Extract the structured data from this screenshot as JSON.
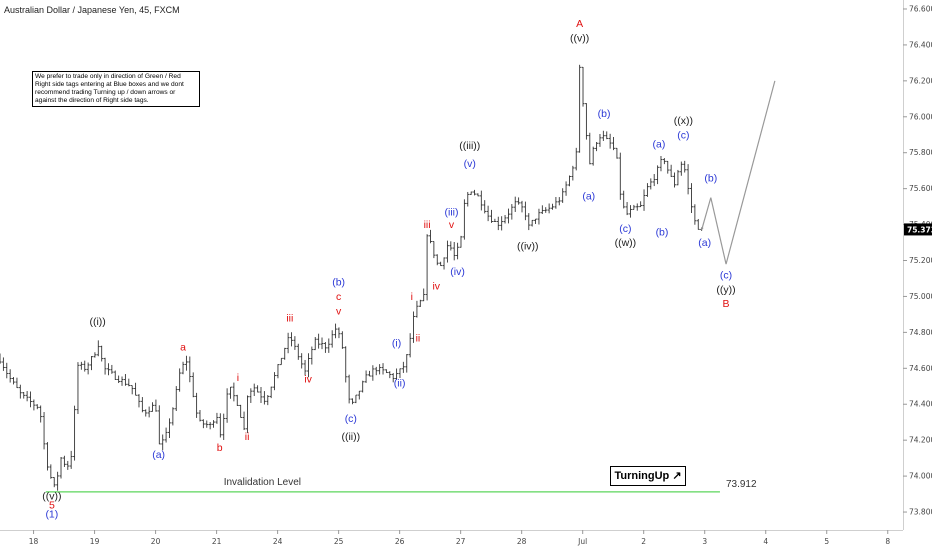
{
  "title": "Australian Dollar / Japanese Yen, 45, FXCM",
  "note": "We prefer to trade only in direction of Green / Red Right side tags entering at Blue boxes and we dont recommend trading Turning up / down arrows or against the direction of Right side tags.",
  "badge": {
    "label": "TurningUp",
    "icon": "up-arrow-icon"
  },
  "colors": {
    "black": "#222222",
    "blue": "#2d3ad6",
    "red": "#e01010",
    "green": "#5cd65c",
    "projection": "#999999",
    "price_tag": "#000000"
  },
  "chart_data": {
    "type": "ohlc",
    "x_unit": "days",
    "x_ticks": [
      {
        "x": 0,
        "label": "18"
      },
      {
        "x": 1,
        "label": "19"
      },
      {
        "x": 2,
        "label": "20"
      },
      {
        "x": 3,
        "label": "21"
      },
      {
        "x": 4,
        "label": "24"
      },
      {
        "x": 5,
        "label": "25"
      },
      {
        "x": 6,
        "label": "26"
      },
      {
        "x": 7,
        "label": "27"
      },
      {
        "x": 8,
        "label": "28"
      },
      {
        "x": 9,
        "label": "Jul"
      },
      {
        "x": 10,
        "label": "2"
      },
      {
        "x": 11,
        "label": "3"
      },
      {
        "x": 12,
        "label": "4"
      },
      {
        "x": 13,
        "label": "5"
      },
      {
        "x": 14,
        "label": "8"
      }
    ],
    "y_ticks": [
      "73.800",
      "74.000",
      "74.200",
      "74.400",
      "74.600",
      "74.800",
      "75.000",
      "75.200",
      "75.400",
      "75.600",
      "75.800",
      "76.000",
      "76.200",
      "76.400",
      "76.600"
    ],
    "ylim": [
      73.7,
      76.65
    ],
    "xlim": [
      -0.55,
      14.25
    ],
    "current_price": "75.373",
    "invalidation": {
      "label": "Invalidation Level",
      "value": 73.912,
      "value_label": "73.912",
      "x_start": 0.2,
      "x_end": 11.25
    },
    "price_path": [
      [
        -0.55,
        74.65
      ],
      [
        -0.4,
        74.55
      ],
      [
        -0.2,
        74.45
      ],
      [
        0.0,
        74.4
      ],
      [
        0.1,
        74.38
      ],
      [
        0.2,
        74.1
      ],
      [
        0.3,
        73.97
      ],
      [
        0.35,
        73.93
      ],
      [
        0.45,
        74.1
      ],
      [
        0.55,
        74.05
      ],
      [
        0.65,
        74.15
      ],
      [
        0.7,
        74.62
      ],
      [
        0.85,
        74.6
      ],
      [
        1.0,
        74.68
      ],
      [
        1.05,
        74.75
      ],
      [
        1.15,
        74.6
      ],
      [
        1.35,
        74.55
      ],
      [
        1.6,
        74.5
      ],
      [
        1.8,
        74.35
      ],
      [
        2.0,
        74.4
      ],
      [
        2.05,
        74.17
      ],
      [
        2.15,
        74.2
      ],
      [
        2.3,
        74.4
      ],
      [
        2.4,
        74.58
      ],
      [
        2.5,
        74.65
      ],
      [
        2.58,
        74.52
      ],
      [
        2.7,
        74.3
      ],
      [
        2.9,
        74.28
      ],
      [
        3.0,
        74.35
      ],
      [
        3.05,
        74.22
      ],
      [
        3.1,
        74.3
      ],
      [
        3.2,
        74.5
      ],
      [
        3.35,
        74.4
      ],
      [
        3.45,
        74.26
      ],
      [
        3.5,
        74.45
      ],
      [
        3.6,
        74.5
      ],
      [
        3.8,
        74.42
      ],
      [
        4.0,
        74.6
      ],
      [
        4.1,
        74.7
      ],
      [
        4.2,
        74.78
      ],
      [
        4.3,
        74.7
      ],
      [
        4.45,
        74.58
      ],
      [
        4.6,
        74.75
      ],
      [
        4.8,
        74.72
      ],
      [
        4.95,
        74.82
      ],
      [
        5.05,
        74.75
      ],
      [
        5.15,
        74.45
      ],
      [
        5.2,
        74.38
      ],
      [
        5.3,
        74.45
      ],
      [
        5.45,
        74.55
      ],
      [
        5.6,
        74.6
      ],
      [
        5.75,
        74.58
      ],
      [
        5.9,
        74.55
      ],
      [
        6.05,
        74.6
      ],
      [
        6.15,
        74.7
      ],
      [
        6.2,
        74.85
      ],
      [
        6.3,
        74.95
      ],
      [
        6.4,
        75.0
      ],
      [
        6.45,
        75.35
      ],
      [
        6.55,
        75.25
      ],
      [
        6.65,
        75.15
      ],
      [
        6.75,
        75.25
      ],
      [
        6.8,
        75.3
      ],
      [
        6.9,
        75.22
      ],
      [
        7.0,
        75.3
      ],
      [
        7.05,
        75.5
      ],
      [
        7.15,
        75.6
      ],
      [
        7.3,
        75.55
      ],
      [
        7.45,
        75.45
      ],
      [
        7.6,
        75.4
      ],
      [
        7.75,
        75.45
      ],
      [
        7.9,
        75.52
      ],
      [
        8.05,
        75.48
      ],
      [
        8.1,
        75.38
      ],
      [
        8.25,
        75.45
      ],
      [
        8.5,
        75.5
      ],
      [
        8.65,
        75.55
      ],
      [
        8.8,
        75.68
      ],
      [
        8.9,
        75.8
      ],
      [
        8.92,
        76.05
      ],
      [
        8.95,
        76.28
      ],
      [
        9.0,
        76.1
      ],
      [
        9.05,
        75.95
      ],
      [
        9.1,
        75.72
      ],
      [
        9.2,
        75.85
      ],
      [
        9.3,
        75.9
      ],
      [
        9.45,
        75.85
      ],
      [
        9.55,
        75.8
      ],
      [
        9.6,
        75.6
      ],
      [
        9.7,
        75.45
      ],
      [
        9.8,
        75.48
      ],
      [
        9.95,
        75.5
      ],
      [
        10.05,
        75.6
      ],
      [
        10.15,
        75.65
      ],
      [
        10.25,
        75.72
      ],
      [
        10.32,
        75.78
      ],
      [
        10.4,
        75.7
      ],
      [
        10.5,
        75.62
      ],
      [
        10.6,
        75.75
      ],
      [
        10.68,
        75.7
      ],
      [
        10.75,
        75.55
      ],
      [
        10.85,
        75.4
      ],
      [
        10.95,
        75.37
      ]
    ],
    "projection": [
      [
        10.95,
        75.37
      ],
      [
        11.1,
        75.55
      ],
      [
        11.35,
        75.18
      ],
      [
        12.15,
        76.2
      ]
    ],
    "labels": [
      {
        "text": "((v))",
        "x": 0.3,
        "y": 73.87,
        "color": "black"
      },
      {
        "text": "5",
        "x": 0.3,
        "y": 73.82,
        "color": "red"
      },
      {
        "text": "(1)",
        "x": 0.3,
        "y": 73.77,
        "color": "blue"
      },
      {
        "text": "((i))",
        "x": 1.05,
        "y": 74.84,
        "color": "black"
      },
      {
        "text": "(a)",
        "x": 2.05,
        "y": 74.1,
        "color": "blue"
      },
      {
        "text": "a",
        "x": 2.45,
        "y": 74.7,
        "color": "red"
      },
      {
        "text": "b",
        "x": 3.05,
        "y": 74.14,
        "color": "red"
      },
      {
        "text": "i",
        "x": 3.35,
        "y": 74.53,
        "color": "red"
      },
      {
        "text": "ii",
        "x": 3.5,
        "y": 74.2,
        "color": "red"
      },
      {
        "text": "iii",
        "x": 4.2,
        "y": 74.86,
        "color": "red"
      },
      {
        "text": "iv",
        "x": 4.5,
        "y": 74.52,
        "color": "red"
      },
      {
        "text": "(b)",
        "x": 5.0,
        "y": 75.06,
        "color": "blue"
      },
      {
        "text": "c",
        "x": 5.0,
        "y": 74.98,
        "color": "red"
      },
      {
        "text": "v",
        "x": 5.0,
        "y": 74.9,
        "color": "red"
      },
      {
        "text": "(c)",
        "x": 5.2,
        "y": 74.3,
        "color": "blue"
      },
      {
        "text": "((ii))",
        "x": 5.2,
        "y": 74.2,
        "color": "black"
      },
      {
        "text": "(i)",
        "x": 5.95,
        "y": 74.72,
        "color": "blue"
      },
      {
        "text": "(ii)",
        "x": 6.0,
        "y": 74.5,
        "color": "blue"
      },
      {
        "text": "i",
        "x": 6.2,
        "y": 74.98,
        "color": "red"
      },
      {
        "text": "ii",
        "x": 6.3,
        "y": 74.75,
        "color": "red"
      },
      {
        "text": "iii",
        "x": 6.45,
        "y": 75.38,
        "color": "red"
      },
      {
        "text": "iv",
        "x": 6.6,
        "y": 75.04,
        "color": "red"
      },
      {
        "text": "v",
        "x": 6.85,
        "y": 75.38,
        "color": "red"
      },
      {
        "text": "(iii)",
        "x": 6.85,
        "y": 75.45,
        "color": "blue"
      },
      {
        "text": "(iv)",
        "x": 6.95,
        "y": 75.12,
        "color": "blue"
      },
      {
        "text": "(v)",
        "x": 7.15,
        "y": 75.72,
        "color": "blue"
      },
      {
        "text": "((iii))",
        "x": 7.15,
        "y": 75.82,
        "color": "black"
      },
      {
        "text": "((iv))",
        "x": 8.1,
        "y": 75.26,
        "color": "black"
      },
      {
        "text": "A",
        "x": 8.95,
        "y": 76.5,
        "color": "red"
      },
      {
        "text": "((v))",
        "x": 8.95,
        "y": 76.42,
        "color": "black"
      },
      {
        "text": "(a)",
        "x": 9.1,
        "y": 75.54,
        "color": "blue"
      },
      {
        "text": "(b)",
        "x": 9.35,
        "y": 76.0,
        "color": "blue"
      },
      {
        "text": "(c)",
        "x": 9.7,
        "y": 75.36,
        "color": "blue"
      },
      {
        "text": "((w))",
        "x": 9.7,
        "y": 75.28,
        "color": "black"
      },
      {
        "text": "(a)",
        "x": 10.25,
        "y": 75.83,
        "color": "blue"
      },
      {
        "text": "(b)",
        "x": 10.3,
        "y": 75.34,
        "color": "blue"
      },
      {
        "text": "(c)",
        "x": 10.65,
        "y": 75.88,
        "color": "blue"
      },
      {
        "text": "((x))",
        "x": 10.65,
        "y": 75.96,
        "color": "black"
      },
      {
        "text": "(b)",
        "x": 11.1,
        "y": 75.64,
        "color": "blue"
      },
      {
        "text": "(a)",
        "x": 11.0,
        "y": 75.28,
        "color": "blue"
      },
      {
        "text": "(c)",
        "x": 11.35,
        "y": 75.1,
        "color": "blue"
      },
      {
        "text": "((y))",
        "x": 11.35,
        "y": 75.02,
        "color": "black"
      },
      {
        "text": "B",
        "x": 11.35,
        "y": 74.94,
        "color": "red"
      }
    ]
  }
}
